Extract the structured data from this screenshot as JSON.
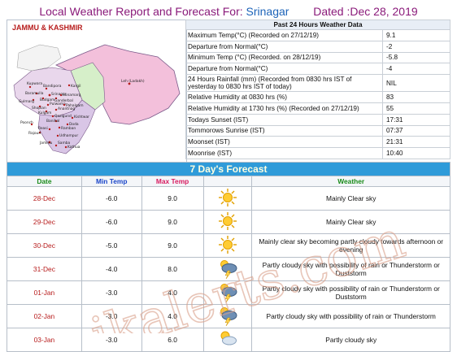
{
  "header": {
    "prefix": "Local Weather Report and Forecast For:",
    "city": "Srinagar",
    "dated": "Dated :Dec 28, 2019"
  },
  "map": {
    "title": "JAMMU & KASHMIR",
    "places": [
      "Kupwara",
      "Bandipora",
      "Kargil",
      "Baramulla",
      "Srinagar",
      "Sonamarg",
      "Budgam",
      "Ganderbal",
      "Pulwama",
      "Shopian",
      "Anantnag",
      "Pahalgam",
      "Kulgam",
      "Gulmarg",
      "Qazigund",
      "Banihal",
      "Kishtwar",
      "Doda",
      "Ramban",
      "Reasi",
      "Udhampur",
      "Rajouri",
      "Poonch",
      "Kathua",
      "Samba",
      "Jammu",
      "Leh (Ladakh)"
    ]
  },
  "past24": {
    "caption": "Past 24 Hours Weather Data",
    "rows": [
      {
        "label": "Maximum Temp(°C) (Recorded on 27/12/19)",
        "value": "9.1"
      },
      {
        "label": "Departure from Normal(°C)",
        "value": "-2"
      },
      {
        "label": "Minimum Temp (°C) (Recorded. on 28/12/19)",
        "value": "-5.8"
      },
      {
        "label": "Departure from Normal(°C)",
        "value": "-4"
      },
      {
        "label": "24 Hours Rainfall (mm) (Recorded from 0830 hrs IST of yesterday to 0830 hrs IST of today)",
        "value": "NIL"
      },
      {
        "label": "Relative Humidity at 0830 hrs (%)",
        "value": "83"
      },
      {
        "label": "Relative Humidity at 1730 hrs (%) (Recorded on 27/12/19)",
        "value": "55"
      },
      {
        "label": "Todays Sunset (IST)",
        "value": "17:31"
      },
      {
        "label": "Tommorows Sunrise (IST)",
        "value": "07:37"
      },
      {
        "label": "Moonset (IST)",
        "value": "21:31"
      },
      {
        "label": "Moonrise (IST)",
        "value": "10:40"
      }
    ]
  },
  "forecast": {
    "title": "7 Day's Forecast",
    "headers": {
      "date": "Date",
      "min": "Min Temp",
      "max": "Max Temp",
      "weather": "Weather"
    },
    "rows": [
      {
        "date": "28-Dec",
        "min": "-6.0",
        "max": "9.0",
        "icon": "sun-icon",
        "text": "Mainly Clear sky"
      },
      {
        "date": "29-Dec",
        "min": "-6.0",
        "max": "9.0",
        "icon": "sun-icon",
        "text": "Mainly Clear sky"
      },
      {
        "date": "30-Dec",
        "min": "-5.0",
        "max": "9.0",
        "icon": "sun-icon",
        "text": "Mainly clear sky becoming partly cloudy towards afternoon or evening"
      },
      {
        "date": "31-Dec",
        "min": "-4.0",
        "max": "8.0",
        "icon": "thunderstorm-icon",
        "text": "Partly cloudy sky with possibility of rain or Thunderstorm or Duststorm"
      },
      {
        "date": "01-Jan",
        "min": "-3.0",
        "max": "4.0",
        "icon": "thunderstorm-icon",
        "text": "Partly cloudy sky with possibility of rain or Thunderstorm or Duststorm"
      },
      {
        "date": "02-Jan",
        "min": "-3.0",
        "max": "4.0",
        "icon": "thunderstorm-icon",
        "text": "Partly cloudy sky with possibility of rain or Thunderstorm"
      },
      {
        "date": "03-Jan",
        "min": "-3.0",
        "max": "6.0",
        "icon": "partly-cloudy-icon",
        "text": "Partly cloudy sky"
      }
    ]
  },
  "watermark": {
    "text": "jkalerts.com"
  },
  "colors": {
    "accent": "#2f9bd9",
    "date": "#b71c1c",
    "map_lake": "#f1c6dd",
    "map_green": "#cdecc6"
  }
}
